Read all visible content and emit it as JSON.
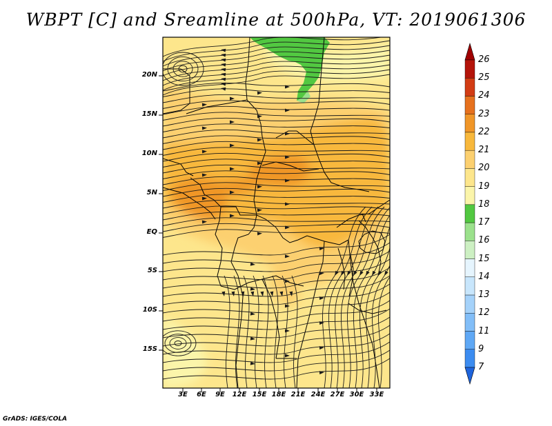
{
  "title": "WBPT [C] and Sreamline at 500hPa, VT: 2019061306",
  "footer": "GrADS: IGES/COLA",
  "map": {
    "variable": "Wet-bulb potential temperature",
    "level": "500hPa",
    "valid_time": "2019061306",
    "latitude_ticks": [
      "20N",
      "15N",
      "10N",
      "5N",
      "EQ",
      "5S",
      "10S",
      "15S"
    ],
    "longitude_ticks": [
      "3E",
      "6E",
      "9E",
      "12E",
      "15E",
      "18E",
      "21E",
      "24E",
      "27E",
      "30E",
      "33E"
    ]
  },
  "colorbar": {
    "levels": [
      "7",
      "9",
      "11",
      "12",
      "13",
      "14",
      "15",
      "16",
      "17",
      "18",
      "19",
      "20",
      "21",
      "22",
      "23",
      "24",
      "25",
      "26"
    ],
    "colors": [
      "#1e64dc",
      "#3c8cf0",
      "#5fa8f5",
      "#82bef8",
      "#a5d2fa",
      "#c8e6fc",
      "#e6f5fe",
      "#cdf0c3",
      "#9be18c",
      "#52c841",
      "#fbf5aa",
      "#fde68c",
      "#fcd070",
      "#f8b83c",
      "#f09628",
      "#e6711e",
      "#d23c14",
      "#b4140a",
      "#a00000"
    ]
  }
}
